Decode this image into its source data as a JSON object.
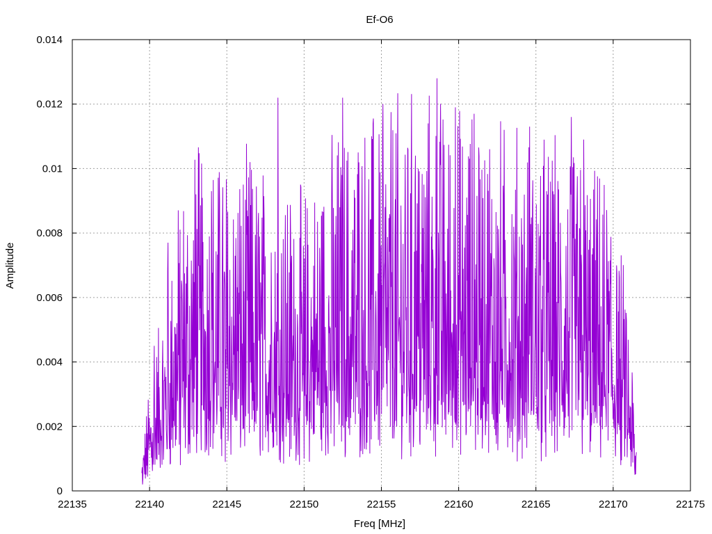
{
  "chart_data": {
    "type": "line",
    "title": "Ef-O6",
    "xlabel": "Freq [MHz]",
    "ylabel": "Amplitude",
    "xlim": [
      22135,
      22175
    ],
    "ylim": [
      0,
      0.014
    ],
    "xticks": [
      22135,
      22140,
      22145,
      22150,
      22155,
      22160,
      22165,
      22170,
      22175
    ],
    "yticks": [
      0,
      0.002,
      0.004,
      0.006,
      0.008,
      0.01,
      0.012,
      0.014
    ],
    "ytick_labels": [
      "0",
      "0.002",
      "0.004",
      "0.006",
      "0.008",
      "0.01",
      "0.012",
      "0.014"
    ],
    "grid": true,
    "line_color": "#9400d3",
    "series": [
      {
        "x_range": [
          22139.5,
          22171.5
        ],
        "points": 1400,
        "envelope": {
          "x": [
            22139.5,
            22140.0,
            22141.0,
            22142.0,
            22143.0,
            22145.0,
            22148.0,
            22150.0,
            22152.0,
            22155.0,
            22158.0,
            22160.0,
            22163.0,
            22166.0,
            22168.0,
            22169.5,
            22170.5,
            22171.0,
            22171.5
          ],
          "y": [
            0.0006,
            0.0018,
            0.0034,
            0.005,
            0.0056,
            0.0055,
            0.0052,
            0.0048,
            0.0058,
            0.0062,
            0.0064,
            0.0062,
            0.0059,
            0.0057,
            0.0055,
            0.005,
            0.004,
            0.003,
            0.001
          ]
        },
        "peaks": [
          {
            "x": 22139.55,
            "y": 0.0002
          },
          {
            "x": 22140.3,
            "y": 0.0045
          },
          {
            "x": 22141.2,
            "y": 0.0077
          },
          {
            "x": 22142.0,
            "y": 0.0008
          },
          {
            "x": 22143.0,
            "y": 0.0092
          },
          {
            "x": 22144.0,
            "y": 0.0093
          },
          {
            "x": 22144.9,
            "y": 0.0009
          },
          {
            "x": 22146.5,
            "y": 0.0102
          },
          {
            "x": 22148.3,
            "y": 0.0122
          },
          {
            "x": 22150.0,
            "y": 0.001
          },
          {
            "x": 22152.5,
            "y": 0.0122
          },
          {
            "x": 22153.5,
            "y": 0.0105
          },
          {
            "x": 22155.1,
            "y": 0.012
          },
          {
            "x": 22156.0,
            "y": 0.002
          },
          {
            "x": 22157.2,
            "y": 0.0104
          },
          {
            "x": 22158.6,
            "y": 0.0128
          },
          {
            "x": 22159.8,
            "y": 0.0119
          },
          {
            "x": 22161.0,
            "y": 0.0117
          },
          {
            "x": 22162.0,
            "y": 0.0106
          },
          {
            "x": 22163.5,
            "y": 0.0012
          },
          {
            "x": 22164.6,
            "y": 0.0113
          },
          {
            "x": 22167.3,
            "y": 0.0116
          },
          {
            "x": 22168.1,
            "y": 0.0109
          },
          {
            "x": 22168.5,
            "y": 0.0012
          },
          {
            "x": 22170.5,
            "y": 0.0008
          },
          {
            "x": 22171.4,
            "y": 0.0005
          }
        ]
      }
    ]
  }
}
